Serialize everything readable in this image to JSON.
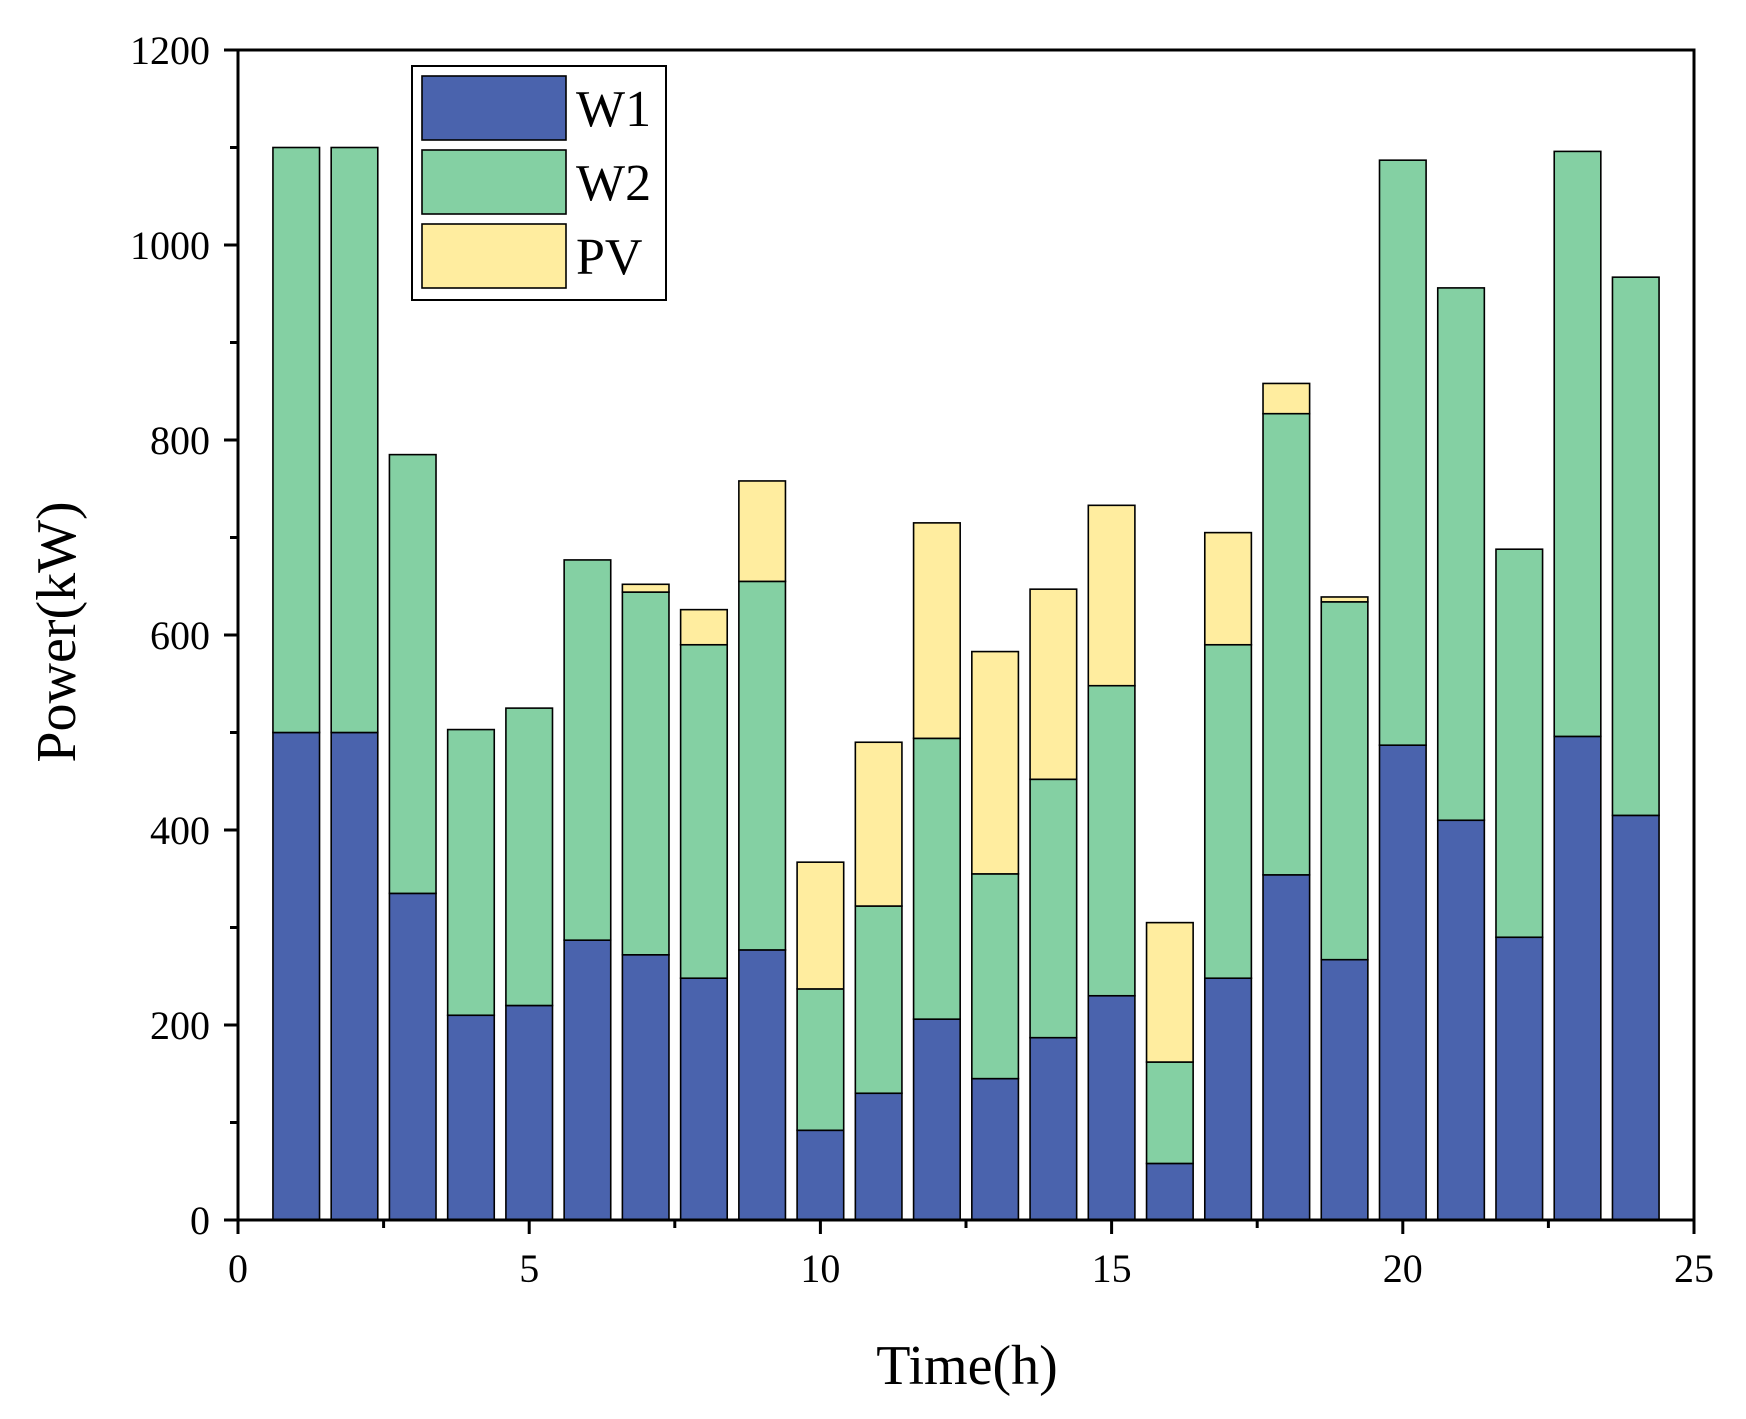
{
  "chart_data": {
    "type": "bar",
    "stacked": true,
    "title": "",
    "xlabel": "Time(h)",
    "ylabel": "Power(kW)",
    "xlim": [
      0,
      25
    ],
    "ylim": [
      0,
      1200
    ],
    "x_ticks": [
      0,
      5,
      10,
      15,
      20,
      25
    ],
    "y_ticks": [
      0,
      200,
      400,
      600,
      800,
      1000,
      1200
    ],
    "legend_position": "top-left",
    "x": [
      1,
      2,
      3,
      4,
      5,
      6,
      7,
      8,
      9,
      10,
      11,
      12,
      13,
      14,
      15,
      16,
      17,
      18,
      19,
      20,
      21,
      22,
      23,
      24
    ],
    "series": [
      {
        "name": "W1",
        "color": "#4a63ad",
        "values": [
          500,
          500,
          335,
          210,
          220,
          287,
          272,
          248,
          277,
          92,
          130,
          206,
          145,
          187,
          230,
          58,
          248,
          354,
          267,
          487,
          410,
          290,
          496,
          415
        ]
      },
      {
        "name": "W2",
        "color": "#84d0a3",
        "values": [
          600,
          600,
          450,
          293,
          305,
          390,
          372,
          342,
          378,
          145,
          192,
          288,
          210,
          265,
          318,
          104,
          342,
          473,
          367,
          600,
          546,
          398,
          600,
          552
        ]
      },
      {
        "name": "PV",
        "color": "#ffed9f",
        "values": [
          0,
          0,
          0,
          0,
          0,
          0,
          8,
          36,
          103,
          130,
          168,
          221,
          228,
          195,
          185,
          143,
          115,
          31,
          5,
          0,
          0,
          0,
          0,
          0
        ]
      }
    ]
  }
}
